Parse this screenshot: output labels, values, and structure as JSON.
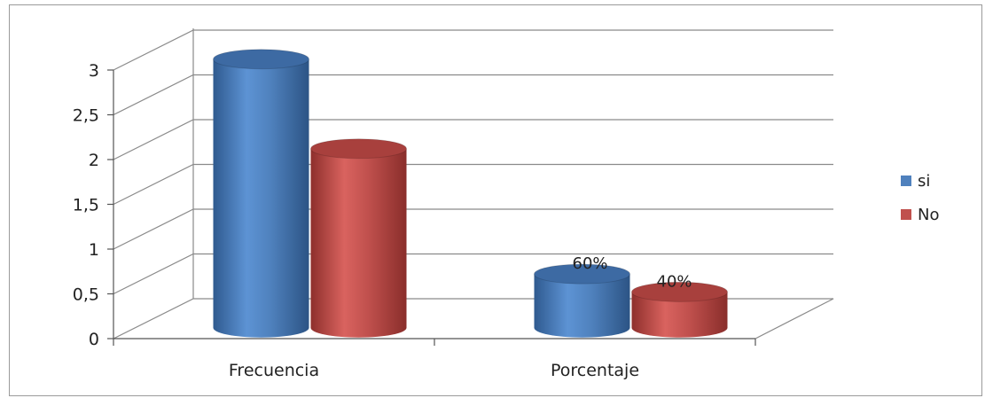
{
  "chart_data": {
    "type": "bar",
    "style": "3d-cylinder",
    "categories": [
      "Frecuencia",
      "Porcentaje"
    ],
    "series": [
      {
        "name": "si",
        "values": [
          3,
          0.6
        ],
        "data_labels": [
          "",
          "60%"
        ],
        "color": "#4f81bd"
      },
      {
        "name": "No",
        "values": [
          2,
          0.4
        ],
        "data_labels": [
          "",
          "40%"
        ],
        "color": "#c0504d"
      }
    ],
    "y_ticks": [
      "0",
      "0,5",
      "1",
      "1,5",
      "2",
      "2,5",
      "3"
    ],
    "ylim": [
      0,
      3
    ],
    "grid": true,
    "legend": "right"
  }
}
